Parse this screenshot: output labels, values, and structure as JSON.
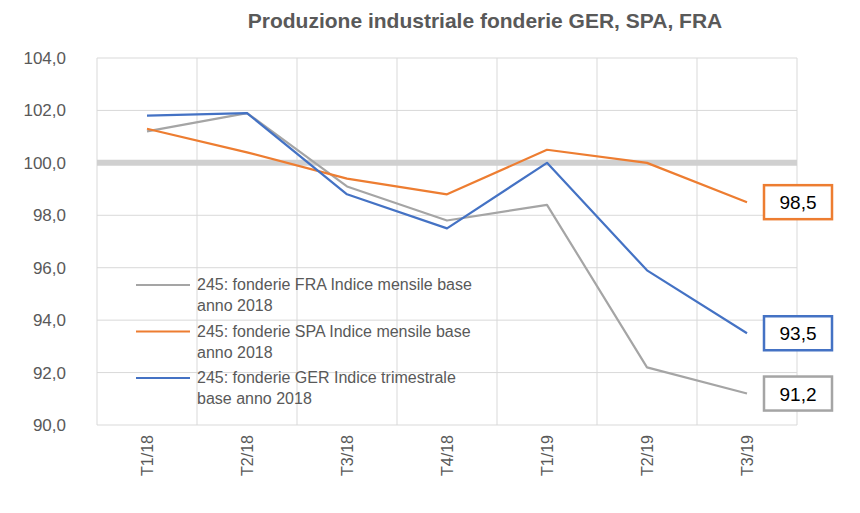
{
  "chart_data": {
    "type": "line",
    "title": "Produzione industriale fonderie GER, SPA, FRA",
    "categories": [
      "T1/18",
      "T2/18",
      "T3/18",
      "T4/18",
      "T1/19",
      "T2/19",
      "T3/19"
    ],
    "series": [
      {
        "name": "245: fonderie FRA Indice mensile base anno 2018",
        "color": "#a5a5a5",
        "values": [
          101.2,
          101.9,
          99.1,
          97.8,
          98.4,
          92.2,
          91.2
        ],
        "value_labels": [
          null,
          null,
          null,
          null,
          null,
          null,
          "91,2"
        ]
      },
      {
        "name": "245: fonderie SPA Indice mensile base anno 2018",
        "color": "#ed7d31",
        "values": [
          101.3,
          100.4,
          99.4,
          98.8,
          100.5,
          100.0,
          98.5
        ],
        "value_labels": [
          null,
          null,
          null,
          null,
          null,
          null,
          "98,5"
        ]
      },
      {
        "name": "245: fonderie GER Indice trimestrale base anno 2018",
        "color": "#4472c4",
        "values": [
          101.8,
          101.9,
          98.8,
          97.5,
          100.0,
          95.9,
          93.5
        ],
        "value_labels": [
          null,
          null,
          null,
          null,
          null,
          null,
          "93,5"
        ]
      }
    ],
    "ylim": [
      90,
      104
    ],
    "yticks": [
      {
        "value": 90,
        "label": "90,0"
      },
      {
        "value": 92,
        "label": "92,0"
      },
      {
        "value": 94,
        "label": "94,0"
      },
      {
        "value": 96,
        "label": "96,0"
      },
      {
        "value": 98,
        "label": "98,0"
      },
      {
        "value": 100,
        "label": "100,0"
      },
      {
        "value": 102,
        "label": "102,0"
      },
      {
        "value": 104,
        "label": "104,0"
      }
    ],
    "reference_line": 100,
    "grid": true,
    "legend": "lower left",
    "data_labels": true
  }
}
